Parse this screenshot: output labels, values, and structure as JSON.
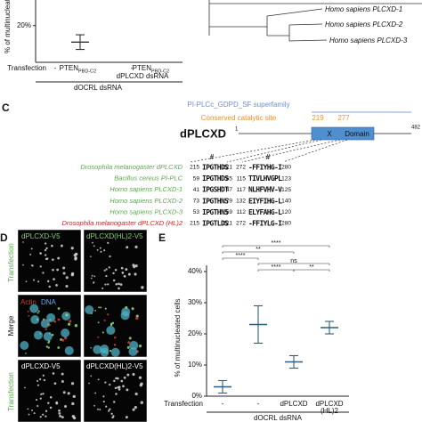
{
  "chart_data": [
    {
      "type": "errorbar",
      "y_label": "% of multinucleated cells",
      "row_label": "Transfection",
      "categories": [
        "-",
        "PTEN",
        "-",
        "PTEN"
      ],
      "subscript": "PBD-C2",
      "values": [
        null,
        11,
        null,
        null
      ],
      "errors": [
        null,
        4,
        null,
        null
      ],
      "ylim": [
        0,
        32
      ],
      "yticks": [
        {
          "value": 20,
          "label": "20%"
        }
      ],
      "groups": [
        "dPLCXD dsRNA",
        "dOCRL dsRNA"
      ]
    },
    {
      "type": "errorbar",
      "y_label": "% of multinucleated cells",
      "row_label": "Transfection",
      "categories": [
        [
          "-"
        ],
        [
          "-"
        ],
        [
          "dPLCXD"
        ],
        [
          "dPLCXD",
          "(HL)2"
        ]
      ],
      "values": [
        3,
        23,
        11,
        22
      ],
      "errors": [
        2,
        6,
        2,
        2
      ],
      "ylim": [
        0,
        42
      ],
      "yticks": [
        {
          "value": 0,
          "label": "0%"
        },
        {
          "value": 10,
          "label": "10%"
        },
        {
          "value": 20,
          "label": "20%"
        },
        {
          "value": 30,
          "label": "30%"
        },
        {
          "value": 40,
          "label": "40%"
        }
      ],
      "group": "dOCRL dsRNA",
      "significance": [
        {
          "pair": [
            0,
            3
          ],
          "label": "****"
        },
        {
          "pair": [
            0,
            2
          ],
          "label": "**"
        },
        {
          "pair": [
            0,
            1
          ],
          "label": "****"
        },
        {
          "pair": [
            1,
            3
          ],
          "label": "ns"
        },
        {
          "pair": [
            1,
            2
          ],
          "label": "****"
        },
        {
          "pair": [
            2,
            3
          ],
          "label": "**"
        }
      ]
    }
  ],
  "tree": {
    "leaves": [
      "Homo sapiens PLCXD-1",
      "Homo sapiens PLCXD-2",
      "Homo sapiens PLCXD-3"
    ]
  },
  "panel_c": {
    "label": "C",
    "superfamily": "PI-PLCc_GDPD_SF superfamily",
    "site_label": "Conserved catalytic site",
    "sites": [
      "219",
      "277"
    ],
    "protein": "dPLCXD",
    "start": "1",
    "end": "482",
    "domain": [
      "X",
      "Domain"
    ],
    "marker": "#",
    "rows": [
      {
        "name": "Drosophila melanogaster dPLCXD",
        "color": "#5aa84a",
        "s1": "215",
        "seq1": "IPGTHDS",
        "e1": "221",
        "s2": "272",
        "seq2": "-FFIYHG-I",
        "e2": "280"
      },
      {
        "name": "Bacillus cereus PI-PLC",
        "color": "#5aa84a",
        "s1": "59",
        "seq1": "IPGTHDS",
        "e1": "65",
        "s2": "115",
        "seq2": "TIVLHVGPL",
        "e2": "123"
      },
      {
        "name": "Homo sapiens PLCXD-1",
        "color": "#5aa84a",
        "s1": "41",
        "seq1": "IPGSHDT",
        "e1": "47",
        "s2": "117",
        "seq2": "NLHFVHV-V",
        "e2": "125"
      },
      {
        "name": "Homo sapiens PLCXD-2",
        "color": "#5aa84a",
        "s1": "73",
        "seq1": "IPGTHNS",
        "e1": "79",
        "s2": "132",
        "seq2": "EIYFIHG-L",
        "e2": "140"
      },
      {
        "name": "Homo sapiens PLCXD-3",
        "color": "#5aa84a",
        "s1": "53",
        "seq1": "IPGTHNS",
        "e1": "59",
        "s2": "112",
        "seq2": "ELYFAHG-L",
        "e2": "120"
      },
      {
        "name": "Drosophila melanogaster dPLCXD (HL)2",
        "color": "#cc1f1f",
        "s1": "215",
        "seq1": "IPGTLDS",
        "e1": "221",
        "s2": "272",
        "seq2": "-FFIYLG-I",
        "e2": "280"
      }
    ]
  },
  "panel_d": {
    "label": "D",
    "columns": [
      "dPLCXD-V5",
      "dPLCXD(HL)2-V5"
    ],
    "row1": "Transfection",
    "merge_stain": [
      "Actin",
      "DNA"
    ],
    "row2": "Merge",
    "row3": "Transfection"
  },
  "panel_e": {
    "label": "E"
  }
}
